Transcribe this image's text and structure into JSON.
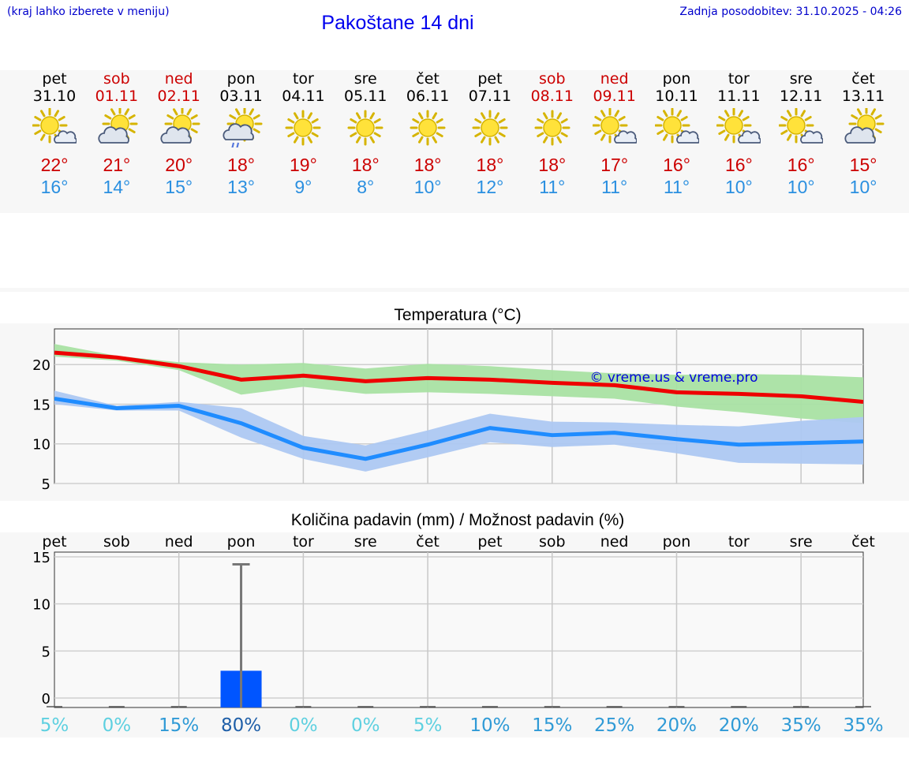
{
  "header": {
    "left_note": "(kraj lahko izberete v meniju)",
    "title": "Pakoštane 14 dni",
    "updated": "Zadnja posodobitev: 31.10.2025 - 04:26"
  },
  "days": [
    {
      "name": "pet",
      "date": "31.10",
      "weekend": false,
      "icon": "sun-cloud-icon",
      "tmax": "22°",
      "tmin": "16°"
    },
    {
      "name": "sob",
      "date": "01.11",
      "weekend": true,
      "icon": "cloud-sun-icon",
      "tmax": "21°",
      "tmin": "14°"
    },
    {
      "name": "ned",
      "date": "02.11",
      "weekend": true,
      "icon": "cloud-sun-icon",
      "tmax": "20°",
      "tmin": "15°"
    },
    {
      "name": "pon",
      "date": "03.11",
      "weekend": false,
      "icon": "rain-sun-icon",
      "tmax": "18°",
      "tmin": "13°"
    },
    {
      "name": "tor",
      "date": "04.11",
      "weekend": false,
      "icon": "sun-icon",
      "tmax": "19°",
      "tmin": "9°"
    },
    {
      "name": "sre",
      "date": "05.11",
      "weekend": false,
      "icon": "sun-icon",
      "tmax": "18°",
      "tmin": "8°"
    },
    {
      "name": "čet",
      "date": "06.11",
      "weekend": false,
      "icon": "sun-icon",
      "tmax": "18°",
      "tmin": "10°"
    },
    {
      "name": "pet",
      "date": "07.11",
      "weekend": false,
      "icon": "sun-icon",
      "tmax": "18°",
      "tmin": "12°"
    },
    {
      "name": "sob",
      "date": "08.11",
      "weekend": true,
      "icon": "sun-icon",
      "tmax": "18°",
      "tmin": "11°"
    },
    {
      "name": "ned",
      "date": "09.11",
      "weekend": true,
      "icon": "sun-cloud-icon",
      "tmax": "17°",
      "tmin": "11°"
    },
    {
      "name": "pon",
      "date": "10.11",
      "weekend": false,
      "icon": "sun-cloud-icon",
      "tmax": "16°",
      "tmin": "11°"
    },
    {
      "name": "tor",
      "date": "11.11",
      "weekend": false,
      "icon": "sun-cloud-icon",
      "tmax": "16°",
      "tmin": "10°"
    },
    {
      "name": "sre",
      "date": "12.11",
      "weekend": false,
      "icon": "sun-cloud-icon",
      "tmax": "16°",
      "tmin": "10°"
    },
    {
      "name": "čet",
      "date": "13.11",
      "weekend": false,
      "icon": "cloud-sun-icon",
      "tmax": "15°",
      "tmin": "10°"
    }
  ],
  "chart_data": [
    {
      "type": "line",
      "title": "Temperatura (°C)",
      "watermark": "© vreme.us & vreme.pro",
      "xlabel": "",
      "ylabel": "",
      "ylim": [
        5,
        24.5
      ],
      "yticks": [
        5,
        10,
        15,
        20
      ],
      "x": [
        0,
        1,
        2,
        3,
        4,
        5,
        6,
        7,
        8,
        9,
        10,
        11,
        12,
        13
      ],
      "series": [
        {
          "name": "max",
          "color": "#ee0000",
          "values": [
            21.5,
            20.9,
            19.8,
            18.1,
            18.6,
            17.9,
            18.3,
            18.1,
            17.7,
            17.4,
            16.5,
            16.3,
            16.0,
            15.3
          ],
          "band_low": [
            21.0,
            20.5,
            19.3,
            16.2,
            17.2,
            16.3,
            16.5,
            16.3,
            16.0,
            15.7,
            14.7,
            14.0,
            13.2,
            12.6
          ],
          "band_high": [
            22.6,
            21.1,
            20.3,
            20.0,
            20.2,
            19.5,
            20.1,
            19.8,
            19.3,
            18.9,
            18.7,
            18.8,
            18.7,
            18.4
          ],
          "band_color": "#a9e2a3"
        },
        {
          "name": "min",
          "color": "#1f8cff",
          "values": [
            15.7,
            14.5,
            14.8,
            12.6,
            9.5,
            8.1,
            9.9,
            12.0,
            11.1,
            11.4,
            10.6,
            9.9,
            10.1,
            10.3
          ],
          "band_low": [
            15.0,
            14.2,
            14.2,
            10.8,
            8.1,
            6.5,
            8.3,
            10.2,
            9.6,
            9.9,
            8.8,
            7.6,
            7.5,
            7.4
          ],
          "band_high": [
            16.7,
            14.8,
            15.3,
            14.5,
            11.0,
            9.8,
            11.7,
            13.8,
            12.8,
            12.7,
            12.4,
            12.2,
            12.9,
            13.4
          ],
          "band_color": "#adc8f2"
        }
      ]
    },
    {
      "type": "bar",
      "title": "Količina padavin (mm) / Možnost padavin (%)",
      "categories": [
        "pet",
        "sob",
        "ned",
        "pon",
        "tor",
        "sre",
        "čet",
        "pet",
        "sob",
        "ned",
        "pon",
        "tor",
        "sre",
        "čet"
      ],
      "values": [
        0,
        0,
        0,
        2.9,
        0,
        0,
        0,
        0,
        0,
        0,
        0,
        0,
        0,
        0
      ],
      "error_high": [
        0,
        0,
        0,
        14.2,
        0,
        0,
        0,
        0,
        0,
        0,
        0,
        0,
        0,
        0
      ],
      "ylim": [
        -1,
        15.5
      ],
      "yticks": [
        0,
        5,
        10,
        15
      ],
      "bar_color": "#0055ff",
      "probability": [
        "5%",
        "0%",
        "15%",
        "80%",
        "0%",
        "0%",
        "5%",
        "10%",
        "15%",
        "25%",
        "20%",
        "20%",
        "35%",
        "35%"
      ],
      "probability_values": [
        5,
        0,
        15,
        80,
        0,
        0,
        5,
        10,
        15,
        25,
        20,
        20,
        35,
        35
      ]
    }
  ]
}
